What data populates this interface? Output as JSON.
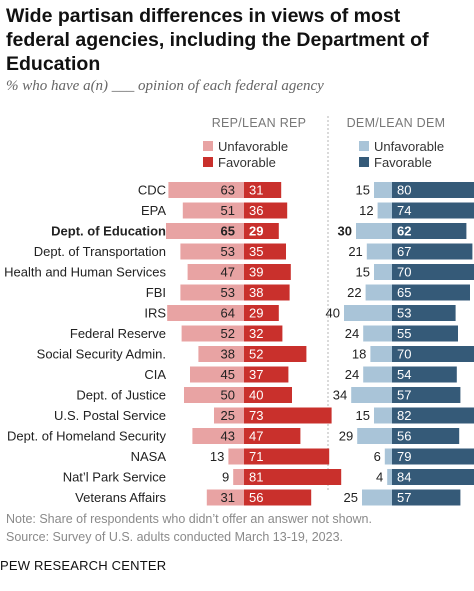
{
  "title": "Wide partisan differences in views of most federal agencies, including the Department of Education",
  "subtitle": "% who have a(n) ___ opinion of each federal agency",
  "note": "Note: Share of respondents who didn’t offer an answer not shown.",
  "source": "Source: Survey of U.S. adults conducted March 13-19, 2023.",
  "org": "PEW RESEARCH CENTER",
  "colors": {
    "rep_unfavorable": "#e8a3a3",
    "rep_favorable": "#c9302c",
    "dem_unfavorable": "#a9c4d8",
    "dem_favorable": "#355a78"
  },
  "chart_data": {
    "type": "bar",
    "orientation": "horizontal-diverging",
    "panels": [
      {
        "header": "REP/LEAN REP",
        "legend": [
          {
            "label": "Unfavorable",
            "series": "unfavorable"
          },
          {
            "label": "Favorable",
            "series": "favorable"
          }
        ]
      },
      {
        "header": "DEM/LEAN DEM",
        "legend": [
          {
            "label": "Unfavorable",
            "series": "unfavorable"
          },
          {
            "label": "Favorable",
            "series": "favorable"
          }
        ]
      }
    ],
    "categories": [
      "CDC",
      "EPA",
      "Dept. of Education",
      "Dept. of Transportation",
      "Health and Human Services",
      "FBI",
      "IRS",
      "Federal Reserve",
      "Social Security Admin.",
      "CIA",
      "Dept. of Justice",
      "U.S. Postal Service",
      "Dept. of Homeland Security",
      "NASA",
      "Nat’l Park Service",
      "Veterans Affairs"
    ],
    "highlighted": "Dept. of Education",
    "rep": {
      "unfavorable": [
        63,
        51,
        65,
        53,
        47,
        53,
        64,
        52,
        38,
        45,
        50,
        25,
        43,
        13,
        9,
        31
      ],
      "favorable": [
        31,
        36,
        29,
        35,
        39,
        38,
        29,
        32,
        52,
        37,
        40,
        73,
        47,
        71,
        81,
        56
      ]
    },
    "dem": {
      "unfavorable": [
        15,
        12,
        30,
        21,
        15,
        22,
        40,
        24,
        18,
        24,
        34,
        15,
        29,
        6,
        4,
        25
      ],
      "favorable": [
        80,
        74,
        62,
        67,
        70,
        65,
        53,
        55,
        70,
        54,
        57,
        82,
        56,
        79,
        84,
        57
      ]
    }
  }
}
